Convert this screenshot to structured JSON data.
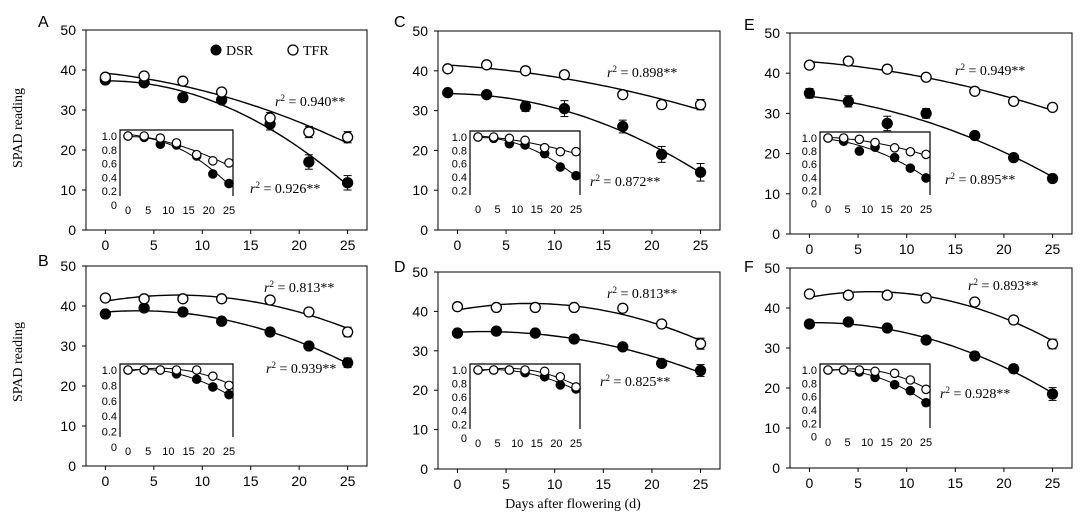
{
  "figure": {
    "x_axis_label": "Days after flowering (d)",
    "y_axis_label": "SPAD reading",
    "legend": [
      {
        "label": "DSR",
        "marker": "filled-circle"
      },
      {
        "label": "TFR",
        "marker": "open-circle"
      }
    ]
  },
  "colors": {
    "filled": "#000000",
    "open": "#ffffff",
    "stroke": "#000000",
    "background": "#ffffff"
  },
  "chart_data": [
    {
      "panel": "A",
      "type": "scatter",
      "xlim": [
        -2,
        27
      ],
      "ylim": [
        0,
        50
      ],
      "x_ticks": [
        "0",
        "5",
        "10",
        "15",
        "20",
        "25"
      ],
      "y_ticks": [
        "0",
        "10",
        "20",
        "30",
        "40",
        "50"
      ],
      "series": [
        {
          "name": "DSR",
          "x": [
            0,
            4,
            8,
            12,
            17,
            21,
            25
          ],
          "y": [
            37.5,
            36.8,
            33.1,
            32.5,
            26.5,
            17.0,
            11.8
          ],
          "err": [
            0.6,
            0.8,
            1.0,
            0.8,
            1.5,
            1.8,
            1.8
          ],
          "r2_label": "r² = 0.926**"
        },
        {
          "name": "TFR",
          "x": [
            0,
            4,
            8,
            12,
            17,
            21,
            25
          ],
          "y": [
            38.2,
            38.5,
            37.2,
            34.5,
            28.0,
            24.5,
            23.2
          ],
          "err": [
            0.5,
            0.6,
            0.6,
            0.8,
            1.4,
            1.4,
            1.4
          ],
          "r2_label": "r² = 0.940**"
        }
      ],
      "inset": {
        "x_ticks": [
          "0",
          "5",
          "10",
          "15",
          "20",
          "25"
        ],
        "y_ticks": [
          "0",
          "0.2",
          "0.4",
          "0.6",
          "0.8",
          "1.0"
        ],
        "series": [
          {
            "name": "DSR",
            "x": [
              0,
              4,
              8,
              12,
              17,
              21,
              25
            ],
            "y": [
              1.0,
              0.98,
              0.88,
              0.87,
              0.71,
              0.45,
              0.31
            ]
          },
          {
            "name": "TFR",
            "x": [
              0,
              4,
              8,
              12,
              17,
              21,
              25
            ],
            "y": [
              1.0,
              1.0,
              0.97,
              0.9,
              0.73,
              0.64,
              0.61
            ]
          }
        ]
      }
    },
    {
      "panel": "B",
      "type": "scatter",
      "xlim": [
        -2,
        27
      ],
      "ylim": [
        0,
        50
      ],
      "x_ticks": [
        "0",
        "5",
        "10",
        "15",
        "20",
        "25"
      ],
      "y_ticks": [
        "0",
        "10",
        "20",
        "30",
        "40",
        "50"
      ],
      "series": [
        {
          "name": "DSR",
          "x": [
            0,
            4,
            8,
            12,
            17,
            21,
            25
          ],
          "y": [
            38.0,
            39.5,
            38.5,
            36.2,
            33.5,
            30.0,
            25.8
          ],
          "err": [
            0.6,
            0.6,
            0.6,
            0.6,
            0.6,
            0.6,
            1.2
          ],
          "r2_label": "r² = 0.939**"
        },
        {
          "name": "TFR",
          "x": [
            0,
            4,
            8,
            12,
            17,
            21,
            25
          ],
          "y": [
            42.0,
            41.8,
            41.8,
            41.8,
            41.5,
            38.5,
            33.5
          ],
          "err": [
            0.4,
            0.4,
            0.4,
            0.4,
            0.5,
            0.8,
            1.2
          ],
          "r2_label": "r² = 0.813**"
        }
      ],
      "inset": {
        "x_ticks": [
          "0",
          "5",
          "10",
          "15",
          "20",
          "25"
        ],
        "y_ticks": [
          "0",
          "0.2",
          "0.4",
          "0.6",
          "0.8",
          "1.0"
        ],
        "series": [
          {
            "name": "DSR",
            "x": [
              0,
              4,
              8,
              12,
              17,
              21,
              25
            ],
            "y": [
              1.0,
              1.0,
              1.0,
              0.95,
              0.88,
              0.78,
              0.68
            ]
          },
          {
            "name": "TFR",
            "x": [
              0,
              4,
              8,
              12,
              17,
              21,
              25
            ],
            "y": [
              1.0,
              1.0,
              1.0,
              1.0,
              1.0,
              0.92,
              0.8
            ]
          }
        ]
      }
    },
    {
      "panel": "C",
      "type": "scatter",
      "xlim": [
        -2,
        27
      ],
      "ylim": [
        0,
        50
      ],
      "x_ticks": [
        "0",
        "5",
        "10",
        "15",
        "20",
        "25"
      ],
      "y_ticks": [
        "0",
        "10",
        "20",
        "30",
        "40",
        "50"
      ],
      "series": [
        {
          "name": "DSR",
          "x": [
            -1,
            3,
            7,
            11,
            17,
            21,
            25
          ],
          "y": [
            34.5,
            34.0,
            31.0,
            30.5,
            26.0,
            19.0,
            14.5
          ],
          "err": [
            0.6,
            0.8,
            1.2,
            2.0,
            1.6,
            2.0,
            2.2
          ],
          "r2_label": "r² = 0.872**"
        },
        {
          "name": "TFR",
          "x": [
            -1,
            3,
            7,
            11,
            17,
            21,
            25
          ],
          "y": [
            40.5,
            41.5,
            40.0,
            39.0,
            34.0,
            31.5,
            31.5
          ],
          "err": [
            0.5,
            0.5,
            0.6,
            0.7,
            0.8,
            0.9,
            1.3
          ],
          "r2_label": "r² = 0.898**"
        }
      ],
      "inset": {
        "x_ticks": [
          "0",
          "5",
          "10",
          "15",
          "20",
          "25"
        ],
        "y_ticks": [
          "0.2",
          "0.4",
          "0.6",
          "0.8",
          "1.0"
        ],
        "series": [
          {
            "name": "DSR",
            "x": [
              0,
              4,
              8,
              12,
              17,
              21,
              25
            ],
            "y": [
              1.0,
              0.98,
              0.9,
              0.88,
              0.75,
              0.55,
              0.42
            ]
          },
          {
            "name": "TFR",
            "x": [
              0,
              4,
              8,
              12,
              17,
              21,
              25
            ],
            "y": [
              1.0,
              1.0,
              0.98,
              0.95,
              0.84,
              0.78,
              0.78
            ]
          }
        ]
      }
    },
    {
      "panel": "D",
      "type": "scatter",
      "xlim": [
        -2,
        27
      ],
      "ylim": [
        0,
        50
      ],
      "x_ticks": [
        "0",
        "5",
        "10",
        "15",
        "20",
        "25"
      ],
      "y_ticks": [
        "0",
        "10",
        "20",
        "30",
        "40",
        "50"
      ],
      "series": [
        {
          "name": "DSR",
          "x": [
            0,
            4,
            8,
            12,
            17,
            21,
            25
          ],
          "y": [
            34.5,
            35.0,
            34.5,
            33.0,
            31.0,
            26.8,
            25.0
          ],
          "err": [
            0.6,
            0.6,
            0.6,
            0.6,
            0.6,
            0.8,
            1.5
          ],
          "r2_label": "r² = 0.825**"
        },
        {
          "name": "TFR",
          "x": [
            0,
            4,
            8,
            12,
            17,
            21,
            25
          ],
          "y": [
            41.2,
            41.0,
            41.0,
            41.0,
            40.8,
            36.8,
            31.8
          ],
          "err": [
            0.4,
            0.4,
            0.4,
            0.4,
            0.6,
            0.8,
            1.4
          ],
          "r2_label": "r² = 0.813**"
        }
      ],
      "inset": {
        "x_ticks": [
          "0",
          "5",
          "10",
          "15",
          "20",
          "25"
        ],
        "y_ticks": [
          "0",
          "0.2",
          "0.4",
          "0.6",
          "0.8",
          "1.0"
        ],
        "series": [
          {
            "name": "DSR",
            "x": [
              0,
              4,
              8,
              12,
              17,
              21,
              25
            ],
            "y": [
              1.0,
              1.0,
              1.0,
              0.96,
              0.9,
              0.78,
              0.72
            ]
          },
          {
            "name": "TFR",
            "x": [
              0,
              4,
              8,
              12,
              17,
              21,
              25
            ],
            "y": [
              1.0,
              1.0,
              1.0,
              1.0,
              0.98,
              0.9,
              0.75
            ]
          }
        ]
      }
    },
    {
      "panel": "E",
      "type": "scatter",
      "xlim": [
        -2,
        27
      ],
      "ylim": [
        0,
        50
      ],
      "x_ticks": [
        "0",
        "5",
        "10",
        "15",
        "20",
        "25"
      ],
      "y_ticks": [
        "0",
        "10",
        "20",
        "30",
        "40",
        "50"
      ],
      "series": [
        {
          "name": "DSR",
          "x": [
            0,
            4,
            8,
            12,
            17,
            21,
            25
          ],
          "y": [
            35.0,
            33.0,
            27.5,
            30.0,
            24.5,
            19.0,
            13.8
          ],
          "err": [
            1.2,
            1.4,
            1.8,
            1.2,
            0.8,
            0.8,
            0.8
          ],
          "r2_label": "r² = 0.895**"
        },
        {
          "name": "TFR",
          "x": [
            0,
            4,
            8,
            12,
            17,
            21,
            25
          ],
          "y": [
            42.0,
            43.0,
            41.0,
            39.0,
            35.5,
            33.0,
            31.5
          ],
          "err": [
            0.5,
            0.5,
            0.6,
            0.6,
            0.6,
            0.6,
            0.8
          ],
          "r2_label": "r² = 0.949**"
        }
      ],
      "inset": {
        "x_ticks": [
          "0",
          "5",
          "10",
          "15",
          "20",
          "25"
        ],
        "y_ticks": [
          "0",
          "0.2",
          "0.4",
          "0.6",
          "0.8",
          "1.0"
        ],
        "series": [
          {
            "name": "DSR",
            "x": [
              0,
              4,
              8,
              12,
              17,
              21,
              25
            ],
            "y": [
              1.0,
              0.95,
              0.8,
              0.86,
              0.7,
              0.54,
              0.39
            ]
          },
          {
            "name": "TFR",
            "x": [
              0,
              4,
              8,
              12,
              17,
              21,
              25
            ],
            "y": [
              1.0,
              1.0,
              0.98,
              0.93,
              0.85,
              0.79,
              0.75
            ]
          }
        ]
      }
    },
    {
      "panel": "F",
      "type": "scatter",
      "xlim": [
        -2,
        27
      ],
      "ylim": [
        0,
        50
      ],
      "x_ticks": [
        "0",
        "5",
        "10",
        "15",
        "20",
        "25"
      ],
      "y_ticks": [
        "0",
        "10",
        "20",
        "30",
        "40",
        "50"
      ],
      "series": [
        {
          "name": "DSR",
          "x": [
            0,
            4,
            8,
            12,
            17,
            21,
            25
          ],
          "y": [
            36.0,
            36.5,
            35.0,
            32.0,
            28.0,
            24.8,
            18.5
          ],
          "err": [
            0.8,
            0.8,
            0.8,
            0.8,
            1.0,
            1.0,
            1.6
          ],
          "r2_label": "r² = 0.928**"
        },
        {
          "name": "TFR",
          "x": [
            0,
            4,
            8,
            12,
            17,
            21,
            25
          ],
          "y": [
            43.5,
            43.2,
            43.2,
            42.5,
            41.5,
            37.0,
            31.0
          ],
          "err": [
            0.4,
            0.4,
            0.4,
            0.6,
            0.6,
            1.0,
            1.2
          ],
          "r2_label": "r² = 0.893**"
        }
      ],
      "inset": {
        "x_ticks": [
          "0",
          "5",
          "10",
          "15",
          "20",
          "25"
        ],
        "y_ticks": [
          "0",
          "0.2",
          "0.4",
          "0.6",
          "0.8",
          "1.0"
        ],
        "series": [
          {
            "name": "DSR",
            "x": [
              0,
              4,
              8,
              12,
              17,
              21,
              25
            ],
            "y": [
              1.0,
              1.0,
              0.97,
              0.89,
              0.78,
              0.69,
              0.51
            ]
          },
          {
            "name": "TFR",
            "x": [
              0,
              4,
              8,
              12,
              17,
              21,
              25
            ],
            "y": [
              1.0,
              1.0,
              1.0,
              0.98,
              0.95,
              0.85,
              0.71
            ]
          }
        ]
      }
    }
  ]
}
